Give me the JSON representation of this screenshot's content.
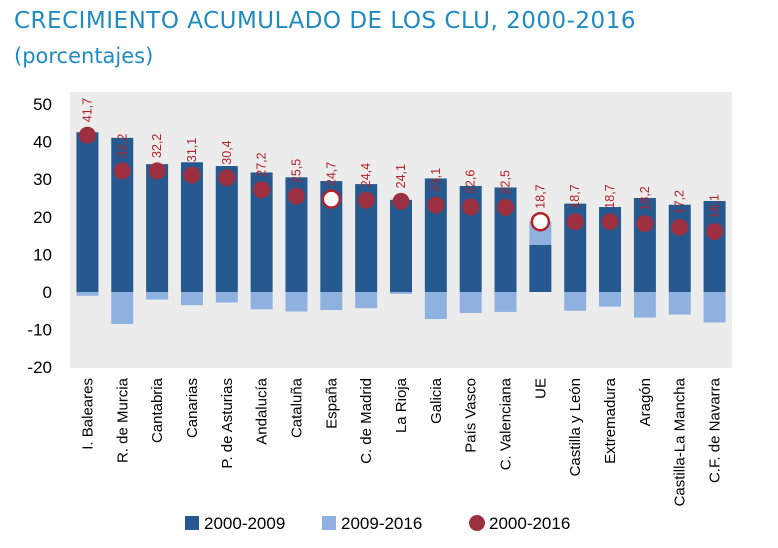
{
  "title": "CRECIMIENTO ACUMULADO DE LOS CLU, 2000-2016",
  "subtitle": "(porcentajes)",
  "colors": {
    "s1": "#25598f",
    "s2": "#8fb1e0",
    "dot": "#9c3040",
    "plot_bg": "#ececec",
    "title": "#1f8bc0",
    "label": "#b0232a"
  },
  "chart_data": {
    "type": "bar",
    "title": "CRECIMIENTO ACUMULADO DE LOS CLU, 2000-2016",
    "subtitle": "(porcentajes)",
    "xlabel": "",
    "ylabel": "",
    "ylim": [
      -20,
      50
    ],
    "yticks": [
      50,
      40,
      30,
      20,
      10,
      0,
      -10,
      -20
    ],
    "grid": false,
    "legend_position": "bottom",
    "categories": [
      "I. Baleares",
      "R. de Murcia",
      "Cantabria",
      "Canarias",
      "P. de Asturias",
      "Andalucía",
      "Cataluña",
      "España",
      "C. de Madrid",
      "La Rioja",
      "Galicia",
      "País Vasco",
      "C. Valenciana",
      "UE",
      "Castilla y León",
      "Extremadura",
      "Aragón",
      "Castilla-La Mancha",
      "C.F. de Navarra"
    ],
    "highlight": [
      "España",
      "UE"
    ],
    "series": [
      {
        "name": "2000-2009",
        "type": "bar",
        "values": [
          42.5,
          41.0,
          34.0,
          34.5,
          33.5,
          31.8,
          30.5,
          29.5,
          28.7,
          24.5,
          30.2,
          28.2,
          27.8,
          12.5,
          23.5,
          22.6,
          25.0,
          23.2,
          24.2
        ]
      },
      {
        "name": "2009-2016",
        "type": "bar",
        "values": [
          -1.0,
          -8.5,
          -2.0,
          -3.5,
          -2.8,
          -4.6,
          -5.2,
          -4.8,
          -4.3,
          -0.5,
          -7.2,
          -5.6,
          -5.3,
          6.2,
          -5.0,
          -3.9,
          -6.8,
          -6.0,
          -8.1
        ]
      },
      {
        "name": "2000-2016",
        "type": "scatter",
        "values": [
          41.7,
          32.2,
          32.2,
          31.1,
          30.4,
          27.2,
          25.5,
          24.7,
          24.4,
          24.1,
          23.1,
          22.6,
          22.5,
          18.7,
          18.7,
          18.7,
          18.2,
          17.2,
          16.1
        ],
        "labels": [
          "41,7",
          "32,2",
          "32,2",
          "31,1",
          "30,4",
          "27,2",
          "25,5",
          "24,7",
          "24,4",
          "24,1",
          "23,1",
          "22,6",
          "22,5",
          "18,7",
          "18,7",
          "18,7",
          "18,2",
          "17,2",
          "16,1"
        ]
      }
    ],
    "ytick_labels": [
      "50",
      "40",
      "30",
      "20",
      "10",
      "0",
      "-10",
      "-20"
    ]
  }
}
